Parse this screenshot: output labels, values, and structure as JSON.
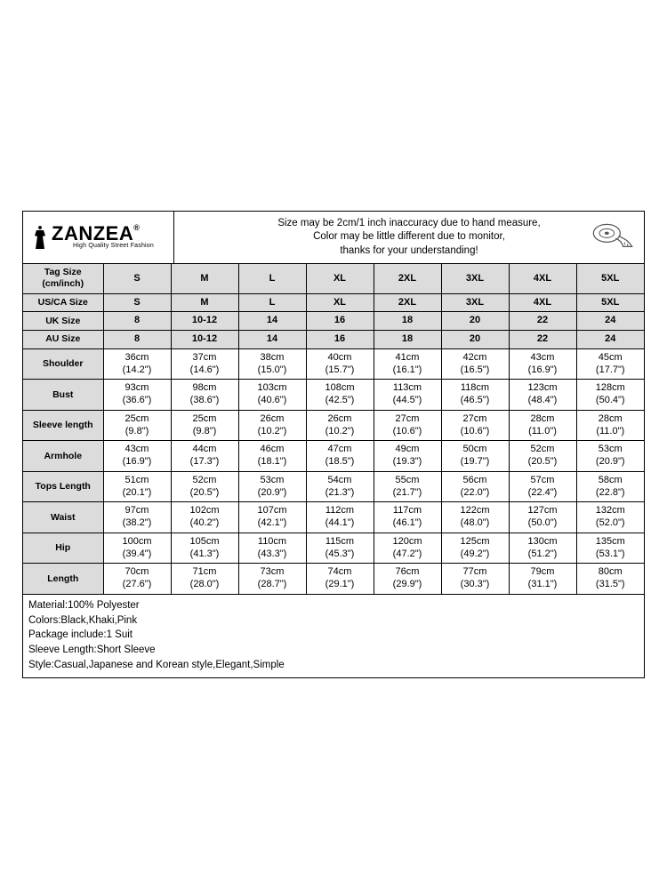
{
  "brand": {
    "name": "ZANZEA",
    "reg": "®",
    "tagline": "High Quality Street Fashion"
  },
  "note": {
    "l1": "Size may be 2cm/1 inch inaccuracy due to hand measure,",
    "l2": "Color may be little different due to monitor,",
    "l3": "thanks for your understanding!"
  },
  "labels": {
    "tag": "Tag Size (cm/inch)",
    "usca": "US/CA Size",
    "uk": "UK Size",
    "au": "AU Size",
    "shoulder": "Shoulder",
    "bust": "Bust",
    "sleeve": "Sleeve length",
    "armhole": "Armhole",
    "tops": "Tops Length",
    "waist": "Waist",
    "hip": "Hip",
    "length": "Length"
  },
  "sizes": [
    "S",
    "M",
    "L",
    "XL",
    "2XL",
    "3XL",
    "4XL",
    "5XL"
  ],
  "usca": [
    "S",
    "M",
    "L",
    "XL",
    "2XL",
    "3XL",
    "4XL",
    "5XL"
  ],
  "uk": [
    "8",
    "10-12",
    "14",
    "16",
    "18",
    "20",
    "22",
    "24"
  ],
  "au": [
    "8",
    "10-12",
    "14",
    "16",
    "18",
    "20",
    "22",
    "24"
  ],
  "shoulder_cm": [
    "36cm",
    "37cm",
    "38cm",
    "40cm",
    "41cm",
    "42cm",
    "43cm",
    "45cm"
  ],
  "shoulder_in": [
    "(14.2\")",
    "(14.6\")",
    "(15.0\")",
    "(15.7\")",
    "(16.1\")",
    "(16.5\")",
    "(16.9\")",
    "(17.7\")"
  ],
  "bust_cm": [
    "93cm",
    "98cm",
    "103cm",
    "108cm",
    "113cm",
    "118cm",
    "123cm",
    "128cm"
  ],
  "bust_in": [
    "(36.6\")",
    "(38.6\")",
    "(40.6\")",
    "(42.5\")",
    "(44.5\")",
    "(46.5\")",
    "(48.4\")",
    "(50.4\")"
  ],
  "sleeve_cm": [
    "25cm",
    "25cm",
    "26cm",
    "26cm",
    "27cm",
    "27cm",
    "28cm",
    "28cm"
  ],
  "sleeve_in": [
    "(9.8\")",
    "(9.8\")",
    "(10.2\")",
    "(10.2\")",
    "(10.6\")",
    "(10.6\")",
    "(11.0\")",
    "(11.0\")"
  ],
  "armhole_cm": [
    "43cm",
    "44cm",
    "46cm",
    "47cm",
    "49cm",
    "50cm",
    "52cm",
    "53cm"
  ],
  "armhole_in": [
    "(16.9\")",
    "(17.3\")",
    "(18.1\")",
    "(18.5\")",
    "(19.3\")",
    "(19.7\")",
    "(20.5\")",
    "(20.9\")"
  ],
  "tops_cm": [
    "51cm",
    "52cm",
    "53cm",
    "54cm",
    "55cm",
    "56cm",
    "57cm",
    "58cm"
  ],
  "tops_in": [
    "(20.1\")",
    "(20.5\")",
    "(20.9\")",
    "(21.3\")",
    "(21.7\")",
    "(22.0\")",
    "(22.4\")",
    "(22.8\")"
  ],
  "waist_cm": [
    "97cm",
    "102cm",
    "107cm",
    "112cm",
    "117cm",
    "122cm",
    "127cm",
    "132cm"
  ],
  "waist_in": [
    "(38.2\")",
    "(40.2\")",
    "(42.1\")",
    "(44.1\")",
    "(46.1\")",
    "(48.0\")",
    "(50.0\")",
    "(52.0\")"
  ],
  "hip_cm": [
    "100cm",
    "105cm",
    "110cm",
    "115cm",
    "120cm",
    "125cm",
    "130cm",
    "135cm"
  ],
  "hip_in": [
    "(39.4\")",
    "(41.3\")",
    "(43.3\")",
    "(45.3\")",
    "(47.2\")",
    "(49.2\")",
    "(51.2\")",
    "(53.1\")"
  ],
  "length_cm": [
    "70cm",
    "71cm",
    "73cm",
    "74cm",
    "76cm",
    "77cm",
    "79cm",
    "80cm"
  ],
  "length_in": [
    "(27.6\")",
    "(28.0\")",
    "(28.7\")",
    "(29.1\")",
    "(29.9\")",
    "(30.3\")",
    "(31.1\")",
    "(31.5\")"
  ],
  "footer": {
    "l1": "Material:100% Polyester",
    "l2": "Colors:Black,Khaki,Pink",
    "l3": "Package include:1 Suit",
    "l4": "Sleeve Length:Short Sleeve",
    "l5": "Style:Casual,Japanese and Korean style,Elegant,Simple"
  },
  "style": {
    "border_color": "#000000",
    "header_bg": "#dcdcdc",
    "body_bg": "#ffffff",
    "font_size_cell": 11,
    "font_size_note": 11.5
  }
}
